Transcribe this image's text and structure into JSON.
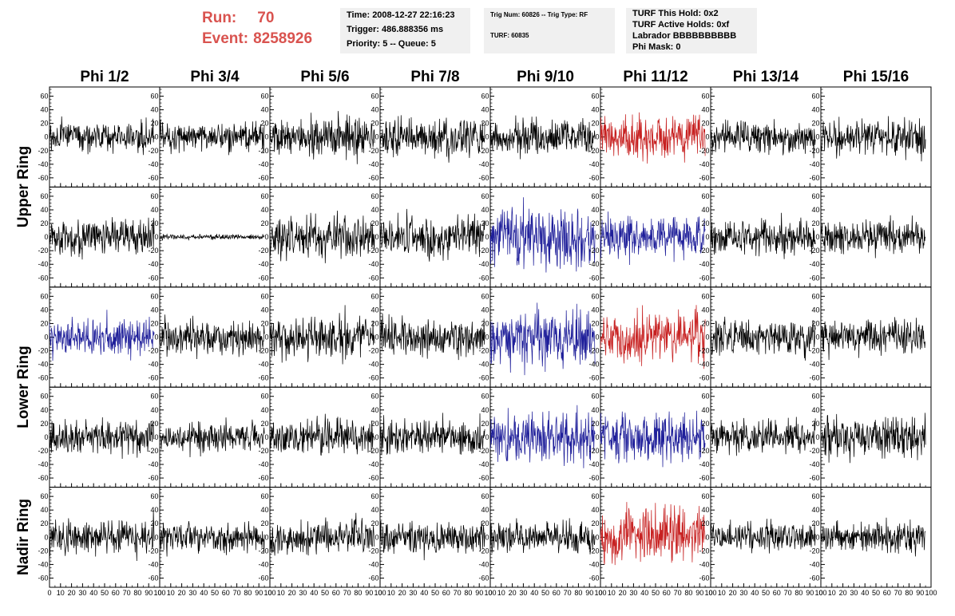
{
  "header": {
    "run_label": "Run:",
    "run_value": "70",
    "event_label": "Event:",
    "event_value": "8258926",
    "time": "Time: 2008-12-27 22:16:23",
    "trigger": "Trigger: 486.888356 ms",
    "priority": "Priority: 5 -- Queue: 5",
    "trig_num": "Trig Num: 60826 -- Trig Type: RF",
    "turf": "TURF: 60835",
    "turf_this_hold": "TURF This Hold: 0x2",
    "turf_active_holds": "TURF Active Holds: 0xf",
    "labrador": "Labrador BBBBBBBBBB",
    "phi_mask": "Phi Mask: 0"
  },
  "colors": {
    "header_red": "#d9534f",
    "info_bg": "#f0f0f0",
    "trace_black": "#000000",
    "trace_blue": "#1f1f9a",
    "trace_red": "#c72020"
  },
  "chart_data": {
    "type": "line",
    "columns": [
      "Phi 1/2",
      "Phi 3/4",
      "Phi 5/6",
      "Phi 7/8",
      "Phi 9/10",
      "Phi 11/12",
      "Phi 13/14",
      "Phi 15/16"
    ],
    "rows": [
      "Upper Ring",
      "Upper Ring",
      "Lower Ring",
      "Lower Ring",
      "Nadir Ring"
    ],
    "row_labels": [
      {
        "text": "Upper Ring",
        "rows": [
          0,
          1
        ]
      },
      {
        "text": "Lower Ring",
        "rows": [
          2,
          3
        ]
      },
      {
        "text": "Nadir Ring",
        "rows": [
          4
        ]
      }
    ],
    "xlim": [
      0,
      100
    ],
    "ylim": [
      -70,
      70
    ],
    "x_ticks": [
      "0",
      "10",
      "20",
      "30",
      "40",
      "50",
      "60",
      "70",
      "80",
      "90",
      "100"
    ],
    "y_ticks": [
      "-60",
      "-40",
      "-20",
      "0",
      "20",
      "40",
      "60"
    ],
    "n_samples": 260,
    "x_max_sample": 95,
    "grid": false,
    "panels": [
      [
        {
          "amp": 11,
          "color": "black"
        },
        {
          "amp": 10,
          "color": "black"
        },
        {
          "amp": 14,
          "color": "black"
        },
        {
          "amp": 13,
          "color": "black"
        },
        {
          "amp": 13,
          "color": "black"
        },
        {
          "amp": 16,
          "color": "red"
        },
        {
          "amp": 12,
          "color": "black"
        },
        {
          "amp": 13,
          "color": "black"
        }
      ],
      [
        {
          "amp": 13,
          "color": "black"
        },
        {
          "amp": 2,
          "color": "black"
        },
        {
          "amp": 15,
          "color": "black"
        },
        {
          "amp": 14,
          "color": "black"
        },
        {
          "amp": 23,
          "color": "blue"
        },
        {
          "amp": 15,
          "color": "blue"
        },
        {
          "amp": 12,
          "color": "black"
        },
        {
          "amp": 12,
          "color": "black"
        }
      ],
      [
        {
          "amp": 13,
          "color": "blue"
        },
        {
          "amp": 12,
          "color": "black"
        },
        {
          "amp": 15,
          "color": "black"
        },
        {
          "amp": 13,
          "color": "black"
        },
        {
          "amp": 19,
          "color": "blue"
        },
        {
          "amp": 19,
          "color": "red"
        },
        {
          "amp": 14,
          "color": "black"
        },
        {
          "amp": 12,
          "color": "black"
        }
      ],
      [
        {
          "amp": 12,
          "color": "black"
        },
        {
          "amp": 11,
          "color": "black"
        },
        {
          "amp": 13,
          "color": "black"
        },
        {
          "amp": 13,
          "color": "black"
        },
        {
          "amp": 18,
          "color": "blue"
        },
        {
          "amp": 18,
          "color": "blue"
        },
        {
          "amp": 11,
          "color": "black"
        },
        {
          "amp": 15,
          "color": "black"
        }
      ],
      [
        {
          "amp": 13,
          "color": "black"
        },
        {
          "amp": 10,
          "color": "black"
        },
        {
          "amp": 12,
          "color": "black"
        },
        {
          "amp": 12,
          "color": "black"
        },
        {
          "amp": 12,
          "color": "black"
        },
        {
          "amp": 22,
          "color": "red"
        },
        {
          "amp": 11,
          "color": "black"
        },
        {
          "amp": 11,
          "color": "black"
        }
      ]
    ]
  }
}
